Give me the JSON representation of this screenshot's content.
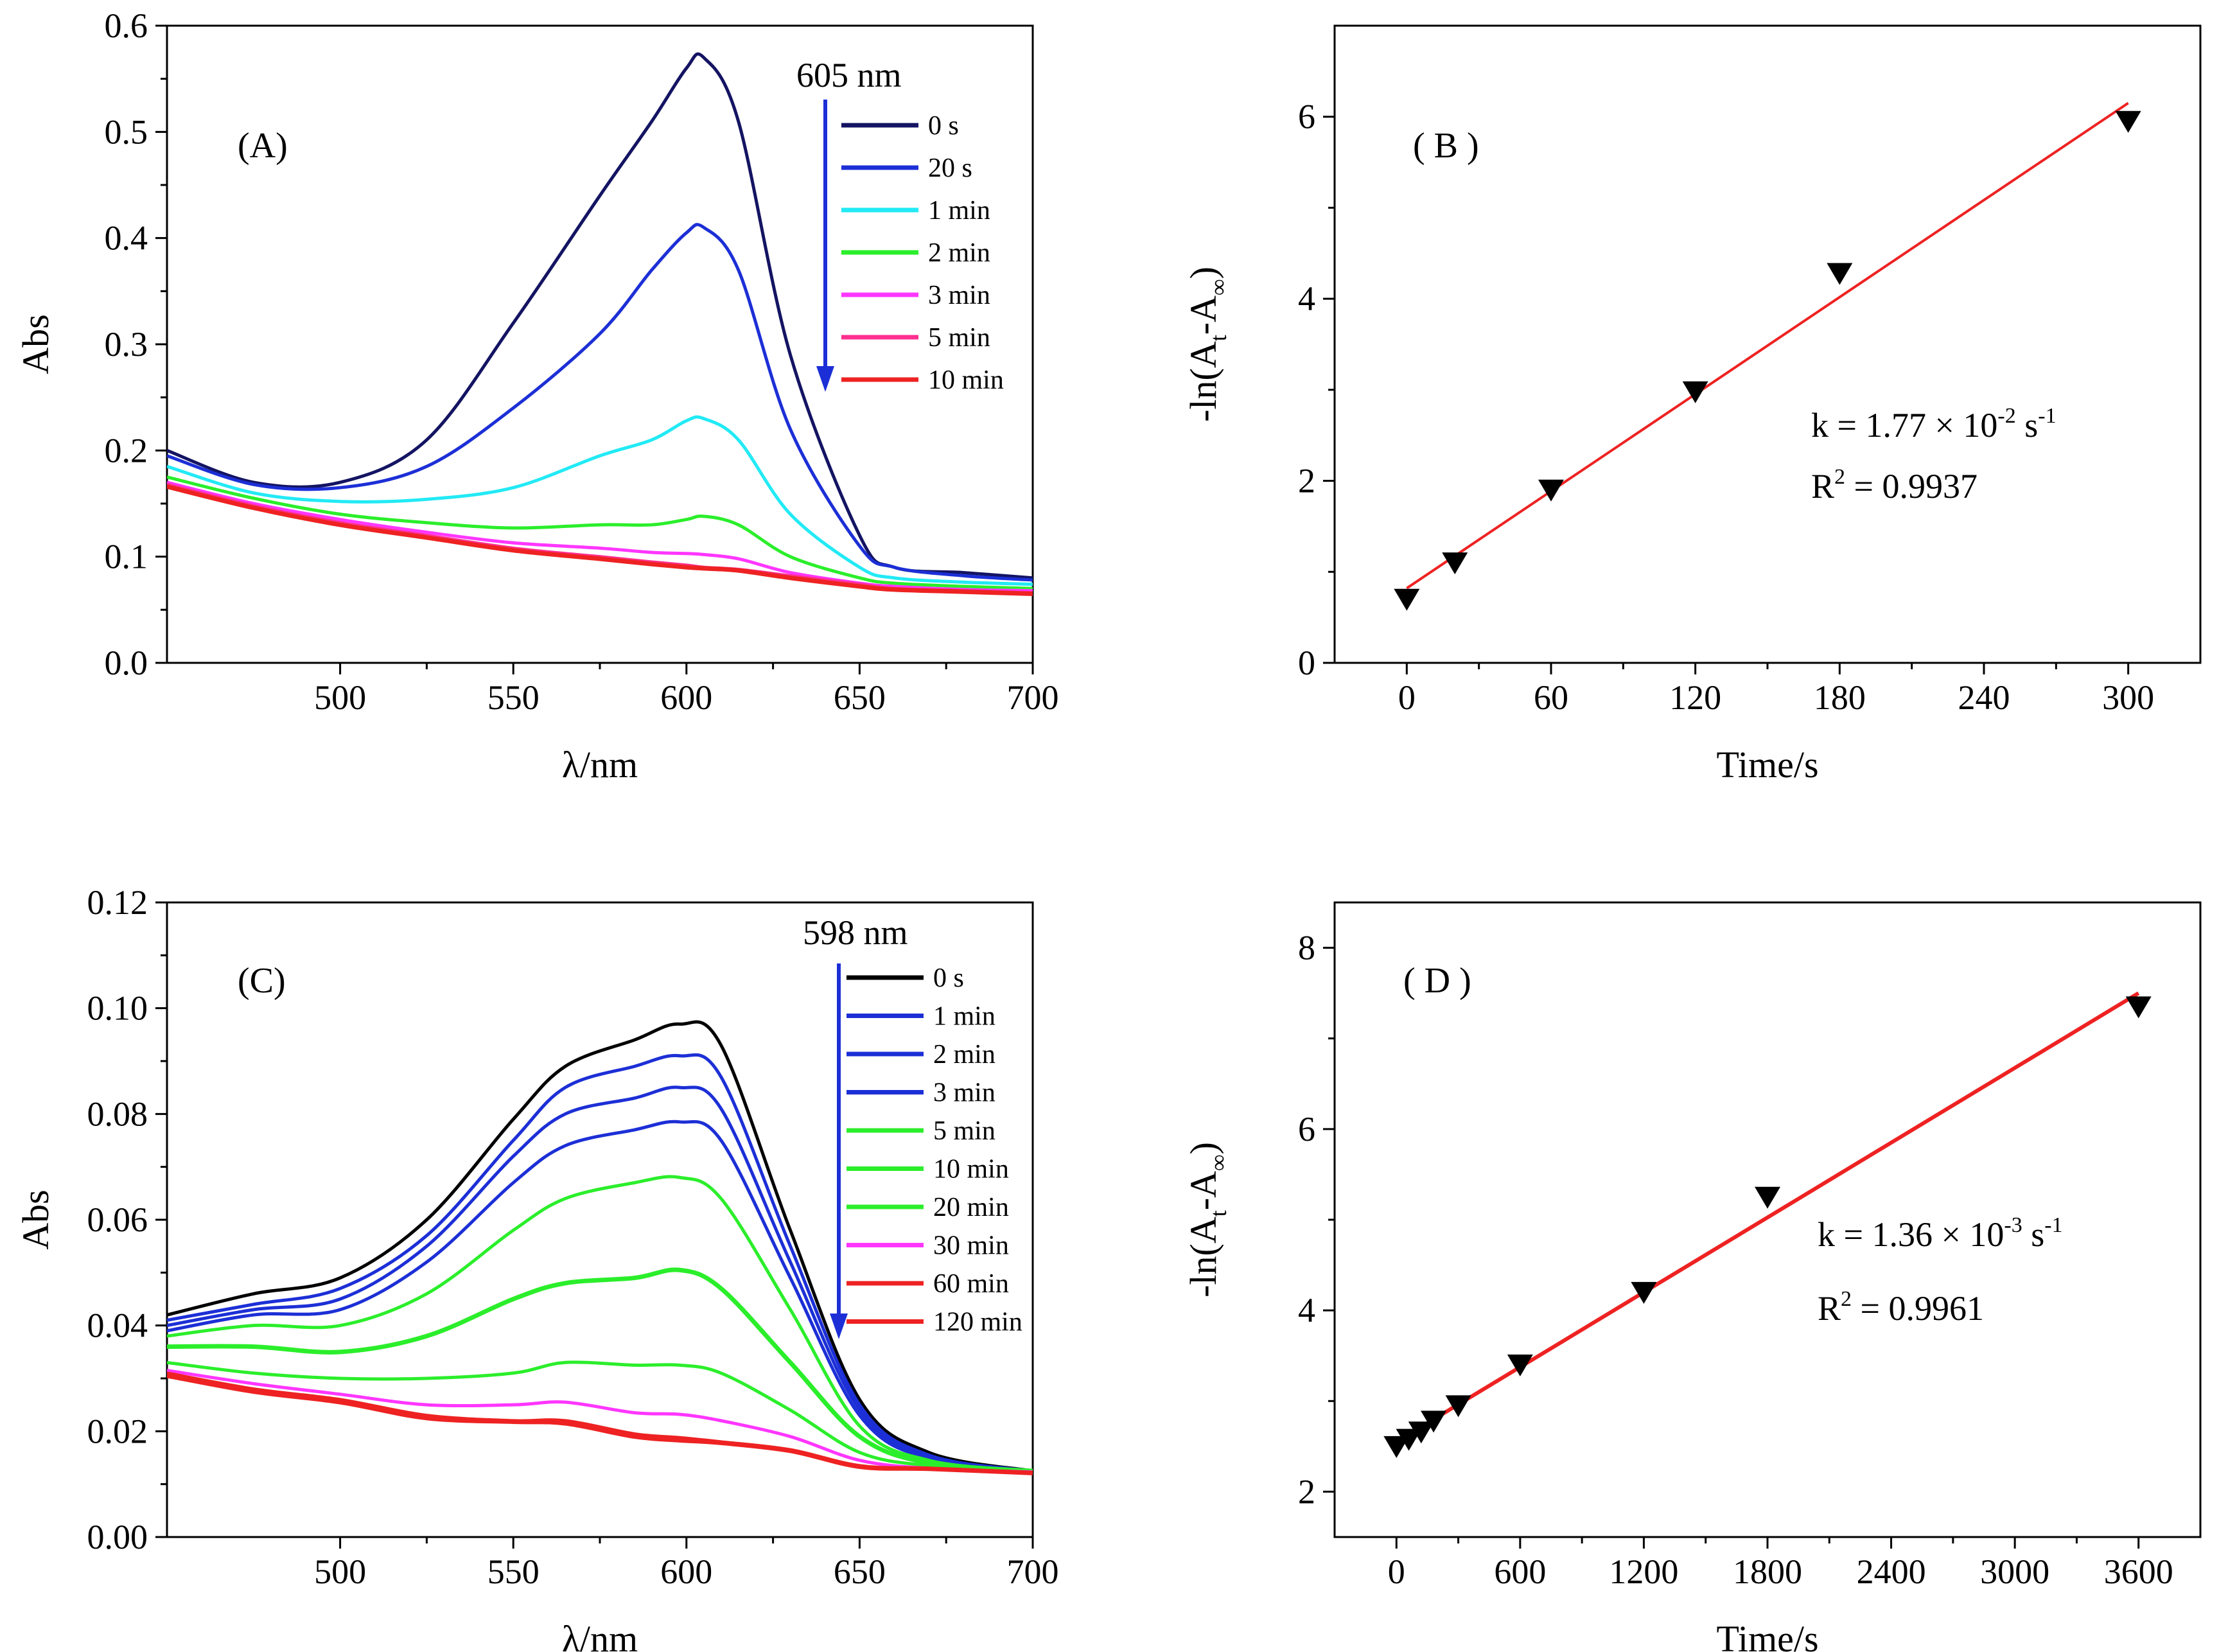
{
  "chart_data": [
    {
      "panel": "A",
      "type": "line",
      "panel_label": "(A)",
      "xlabel": "λ/nm",
      "ylabel": "Abs",
      "xlim": [
        450,
        700
      ],
      "ylim": [
        0,
        0.6
      ],
      "xticks": [
        500,
        550,
        600,
        650,
        700
      ],
      "yticks": [
        0.0,
        0.1,
        0.2,
        0.3,
        0.4,
        0.5,
        0.6
      ],
      "ytick_labels": [
        "0.0",
        "0.1",
        "0.2",
        "0.3",
        "0.4",
        "0.5",
        "0.6"
      ],
      "arrow_label": "605 nm",
      "x": [
        450,
        475,
        500,
        525,
        550,
        575,
        590,
        600,
        605,
        615,
        630,
        650,
        660,
        680,
        700
      ],
      "series": [
        {
          "name": "0 s",
          "color": "#141463",
          "values": [
            0.2,
            0.17,
            0.17,
            0.21,
            0.32,
            0.44,
            0.51,
            0.56,
            0.57,
            0.51,
            0.29,
            0.12,
            0.09,
            0.085,
            0.08
          ]
        },
        {
          "name": "20 s",
          "color": "#1c2fd6",
          "values": [
            0.195,
            0.168,
            0.165,
            0.185,
            0.24,
            0.31,
            0.37,
            0.405,
            0.41,
            0.37,
            0.22,
            0.11,
            0.09,
            0.082,
            0.078
          ]
        },
        {
          "name": "1 min",
          "color": "#22eaf5",
          "values": [
            0.185,
            0.16,
            0.152,
            0.154,
            0.165,
            0.195,
            0.21,
            0.228,
            0.23,
            0.21,
            0.14,
            0.09,
            0.08,
            0.076,
            0.074
          ]
        },
        {
          "name": "2 min",
          "color": "#2bee2b",
          "values": [
            0.175,
            0.155,
            0.14,
            0.132,
            0.127,
            0.13,
            0.13,
            0.135,
            0.138,
            0.13,
            0.1,
            0.08,
            0.075,
            0.072,
            0.07
          ]
        },
        {
          "name": "3 min",
          "color": "#ff36ff",
          "values": [
            0.17,
            0.15,
            0.135,
            0.123,
            0.113,
            0.108,
            0.104,
            0.103,
            0.102,
            0.098,
            0.085,
            0.075,
            0.072,
            0.069,
            0.068
          ]
        },
        {
          "name": "5 min",
          "color": "#ff2f8f",
          "values": [
            0.168,
            0.148,
            0.132,
            0.12,
            0.108,
            0.1,
            0.095,
            0.092,
            0.09,
            0.088,
            0.082,
            0.074,
            0.07,
            0.068,
            0.066
          ]
        },
        {
          "name": "10 min",
          "color": "#ee2222",
          "values": [
            0.166,
            0.146,
            0.13,
            0.118,
            0.106,
            0.098,
            0.093,
            0.09,
            0.089,
            0.087,
            0.08,
            0.072,
            0.069,
            0.067,
            0.065
          ]
        }
      ]
    },
    {
      "panel": "B",
      "type": "scatter",
      "panel_label": "( B )",
      "xlabel": "Time/s",
      "ylabel_parts": [
        "-ln(A",
        "t",
        "-A",
        "∞",
        ")"
      ],
      "xlim": [
        -30,
        330
      ],
      "ylim": [
        0,
        7
      ],
      "xticks": [
        0,
        60,
        120,
        180,
        240,
        300
      ],
      "yticks": [
        0,
        2,
        4,
        6
      ],
      "points_x": [
        0,
        20,
        60,
        120,
        180,
        300
      ],
      "points_y": [
        0.7,
        1.1,
        1.9,
        2.98,
        4.28,
        5.95
      ],
      "fit": {
        "x": [
          0,
          300
        ],
        "y": [
          0.82,
          6.15
        ],
        "color": "#ee2222"
      },
      "annotation_k": {
        "pre": "k = 1.77 × 10",
        "exp": "-2",
        "unit": " s",
        "unit_exp": "-1"
      },
      "annotation_r2": {
        "pre": "R",
        "exp": "2",
        "post": " = 0.9937"
      }
    },
    {
      "panel": "C",
      "type": "line",
      "panel_label": "(C)",
      "xlabel": "λ/nm",
      "ylabel": "Abs",
      "xlim": [
        450,
        700
      ],
      "ylim": [
        0,
        0.12
      ],
      "xticks": [
        500,
        550,
        600,
        650,
        700
      ],
      "yticks": [
        0.0,
        0.02,
        0.04,
        0.06,
        0.08,
        0.1,
        0.12
      ],
      "ytick_labels": [
        "0.00",
        "0.02",
        "0.04",
        "0.06",
        "0.08",
        "0.10",
        "0.12"
      ],
      "arrow_label": "598 nm",
      "x": [
        450,
        475,
        500,
        525,
        550,
        565,
        585,
        598,
        610,
        630,
        650,
        670,
        700
      ],
      "series": [
        {
          "name": "0 s",
          "color": "#000000",
          "values": [
            0.042,
            0.046,
            0.049,
            0.06,
            0.079,
            0.089,
            0.094,
            0.097,
            0.093,
            0.058,
            0.026,
            0.016,
            0.0125
          ]
        },
        {
          "name": "1 min",
          "color": "#1c2fd6",
          "values": [
            0.041,
            0.044,
            0.047,
            0.057,
            0.075,
            0.085,
            0.089,
            0.091,
            0.087,
            0.055,
            0.025,
            0.0155,
            0.0125
          ]
        },
        {
          "name": "2 min",
          "color": "#1c2fd6",
          "values": [
            0.04,
            0.043,
            0.045,
            0.055,
            0.072,
            0.08,
            0.083,
            0.085,
            0.081,
            0.052,
            0.024,
            0.015,
            0.0125
          ]
        },
        {
          "name": "3 min",
          "color": "#1c2fd6",
          "values": [
            0.039,
            0.042,
            0.043,
            0.052,
            0.067,
            0.074,
            0.077,
            0.0785,
            0.075,
            0.049,
            0.023,
            0.0148,
            0.0125
          ]
        },
        {
          "name": "5 min",
          "color": "#2bee2b",
          "values": [
            0.038,
            0.04,
            0.04,
            0.046,
            0.058,
            0.064,
            0.067,
            0.068,
            0.064,
            0.043,
            0.021,
            0.0145,
            0.0125
          ]
        },
        {
          "name": "10 min",
          "color": "#2bee2b",
          "values": [
            0.036,
            0.036,
            0.035,
            0.038,
            0.045,
            0.048,
            0.049,
            0.0505,
            0.047,
            0.033,
            0.019,
            0.014,
            0.0125
          ]
        },
        {
          "name": "20 min",
          "color": "#2bee2b",
          "values": [
            0.033,
            0.031,
            0.03,
            0.03,
            0.031,
            0.033,
            0.0325,
            0.0325,
            0.031,
            0.024,
            0.016,
            0.0135,
            0.0125
          ]
        },
        {
          "name": "30 min",
          "color": "#ff36ff",
          "values": [
            0.0315,
            0.029,
            0.027,
            0.025,
            0.025,
            0.0255,
            0.0235,
            0.0232,
            0.022,
            0.019,
            0.0145,
            0.013,
            0.0123
          ]
        },
        {
          "name": "60 min",
          "color": "#ee2222",
          "values": [
            0.031,
            0.028,
            0.026,
            0.023,
            0.022,
            0.022,
            0.0195,
            0.0188,
            0.018,
            0.0165,
            0.0135,
            0.013,
            0.0122
          ]
        },
        {
          "name": "120 min",
          "color": "#ee2222",
          "values": [
            0.0305,
            0.0275,
            0.0255,
            0.0225,
            0.0218,
            0.0215,
            0.019,
            0.0183,
            0.0178,
            0.0163,
            0.0133,
            0.0129,
            0.0121
          ]
        }
      ]
    },
    {
      "panel": "D",
      "type": "scatter",
      "panel_label": "( D )",
      "xlabel": "Time/s",
      "ylabel_parts": [
        "-ln(A",
        "t",
        "-A",
        "∞",
        ")"
      ],
      "xlim": [
        -300,
        3900
      ],
      "ylim": [
        1.5,
        8.5
      ],
      "xticks": [
        0,
        600,
        1200,
        1800,
        2400,
        3000,
        3600
      ],
      "yticks": [
        2,
        4,
        6,
        8
      ],
      "points_x": [
        0,
        60,
        120,
        180,
        300,
        600,
        1200,
        1800,
        3600
      ],
      "points_y": [
        2.5,
        2.58,
        2.66,
        2.78,
        2.95,
        3.4,
        4.2,
        5.25,
        7.35
      ],
      "fit": {
        "x": [
          0,
          3600
        ],
        "y": [
          2.55,
          7.5
        ],
        "color": "#ee2222"
      },
      "annotation_k": {
        "pre": "k = 1.36 × 10",
        "exp": "-3",
        "unit": " s",
        "unit_exp": "-1"
      },
      "annotation_r2": {
        "pre": "R",
        "exp": "2",
        "post": " = 0.9961"
      }
    }
  ]
}
